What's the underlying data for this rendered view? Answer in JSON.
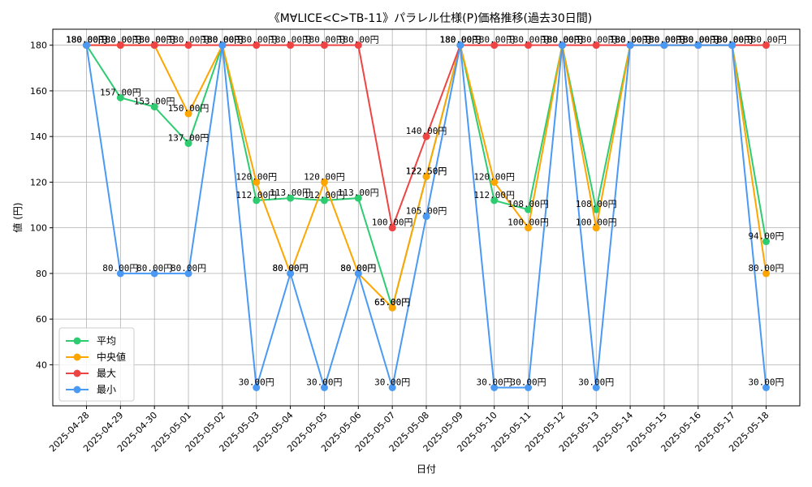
{
  "chart_data": {
    "type": "line",
    "title": "《M∀LICE<C>TB-11》パラレル仕様(P)価格推移(過去30日間)",
    "xlabel": "日付",
    "ylabel": "値 (円)",
    "x": [
      "2025-04-28",
      "2025-04-29",
      "2025-04-30",
      "2025-05-01",
      "2025-05-02",
      "2025-05-03",
      "2025-05-04",
      "2025-05-05",
      "2025-05-06",
      "2025-05-07",
      "2025-05-08",
      "2025-05-09",
      "2025-05-10",
      "2025-05-11",
      "2025-05-12",
      "2025-05-13",
      "2025-05-14",
      "2025-05-15",
      "2025-05-16",
      "2025-05-17",
      "2025-05-18"
    ],
    "ylim": [
      22,
      187
    ],
    "yticks": [
      40,
      60,
      80,
      100,
      120,
      140,
      160,
      180
    ],
    "grid": true,
    "legend_position": "lower-left",
    "value_suffix": "円",
    "series": [
      {
        "name": "平均",
        "color": "#2ecc71",
        "values": [
          180,
          157,
          153,
          137,
          180,
          112,
          113,
          112,
          113,
          65,
          122.5,
          180,
          112,
          108,
          180,
          108,
          180,
          180,
          180,
          180,
          94
        ]
      },
      {
        "name": "中央値",
        "color": "#ffa500",
        "values": [
          180,
          180,
          180,
          150,
          180,
          120,
          80,
          120,
          80,
          65,
          122.5,
          180,
          120,
          100,
          180,
          100,
          180,
          180,
          180,
          180,
          80
        ]
      },
      {
        "name": "最大",
        "color": "#ef4444",
        "values": [
          180,
          180,
          180,
          180,
          180,
          180,
          180,
          180,
          180,
          100,
          140,
          180,
          180,
          180,
          180,
          180,
          180,
          180,
          180,
          180,
          180
        ]
      },
      {
        "name": "最小",
        "color": "#4a9af5",
        "values": [
          180,
          80,
          80,
          80,
          180,
          30,
          80,
          30,
          80,
          30,
          105,
          180,
          30,
          30,
          180,
          30,
          180,
          180,
          180,
          180,
          30
        ]
      }
    ]
  }
}
